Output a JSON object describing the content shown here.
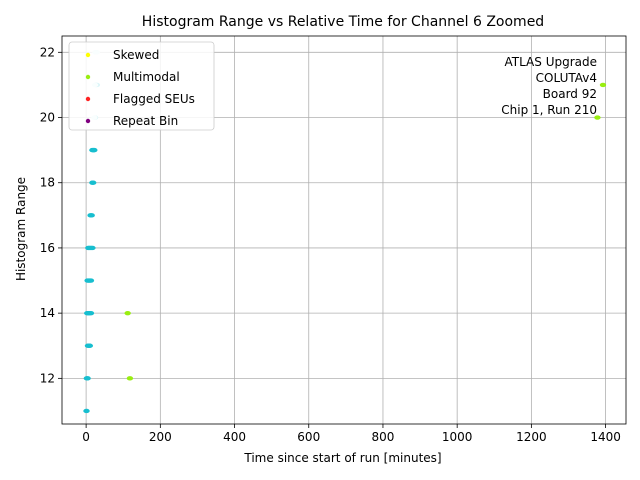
{
  "chart_data": {
    "type": "scatter",
    "title": "Histogram Range vs Relative Time for Channel 6 Zoomed",
    "xlabel": "Time since start of run [minutes]",
    "ylabel": "Histogram Range",
    "xlim": [
      -65,
      1455
    ],
    "ylim": [
      10.6,
      22.5
    ],
    "xticks": [
      0,
      200,
      400,
      600,
      800,
      1000,
      1200,
      1400
    ],
    "yticks": [
      12,
      14,
      16,
      18,
      20,
      22
    ],
    "grid": true,
    "legend_position": "upper-left",
    "annotation": [
      "ATLAS Upgrade",
      "COLUTAv4",
      "Board 92",
      "Chip 1, Run 210"
    ],
    "series": [
      {
        "name": "Skewed",
        "color": "#ffff00",
        "points": []
      },
      {
        "name": "Multimodal",
        "color": "#99ee11",
        "points": [
          [
            112,
            14
          ],
          [
            118,
            12
          ],
          [
            1378,
            20
          ],
          [
            1393,
            21
          ]
        ]
      },
      {
        "name": "Flagged SEUs",
        "color": "#ff2222",
        "points": []
      },
      {
        "name": "Repeat Bin",
        "color": "#800080",
        "points": []
      },
      {
        "color": "#17becf",
        "points": [
          [
            1,
            11
          ],
          [
            2,
            12
          ],
          [
            4,
            12
          ],
          [
            5,
            13
          ],
          [
            8,
            13
          ],
          [
            10,
            13
          ],
          [
            3,
            14
          ],
          [
            6,
            14
          ],
          [
            9,
            14
          ],
          [
            13,
            14
          ],
          [
            4,
            15
          ],
          [
            7,
            15
          ],
          [
            10,
            15
          ],
          [
            13,
            15
          ],
          [
            6,
            16
          ],
          [
            9,
            16
          ],
          [
            13,
            16
          ],
          [
            17,
            16
          ],
          [
            12,
            17
          ],
          [
            15,
            17
          ],
          [
            17,
            18
          ],
          [
            19,
            18
          ],
          [
            17,
            19
          ],
          [
            20,
            19
          ],
          [
            22,
            19
          ],
          [
            24,
            20
          ],
          [
            26,
            21
          ],
          [
            29,
            21
          ],
          [
            27,
            22
          ]
        ]
      },
      {
        "color": "#d6f3f5",
        "points": [
          [
            22,
            20
          ],
          [
            25,
            22
          ],
          [
            29,
            22
          ],
          [
            24,
            21
          ]
        ]
      }
    ]
  }
}
